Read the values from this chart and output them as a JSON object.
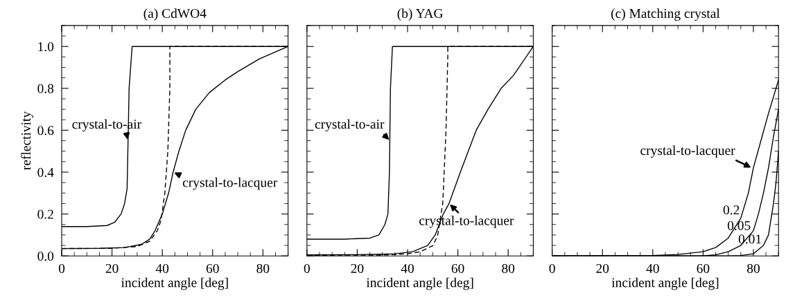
{
  "chart_data": [
    {
      "type": "line",
      "title": "(a) CdWO4",
      "xlabel": "incident angle [deg]",
      "ylabel": "reflectivity",
      "xlim": [
        0,
        90
      ],
      "ylim": [
        0,
        1.1
      ],
      "xticks": [
        0,
        20,
        40,
        60,
        80
      ],
      "yticks": [
        {
          "value": 0,
          "label": "0.0"
        },
        {
          "value": 0.2,
          "label": "0.2"
        },
        {
          "value": 0.4,
          "label": "0.4"
        },
        {
          "value": 0.6,
          "label": "0.6"
        },
        {
          "value": 0.8,
          "label": "0.8"
        },
        {
          "value": 1.0,
          "label": "1.0"
        }
      ],
      "series": [
        {
          "color": "#000000",
          "x": [
            0,
            10,
            18,
            21,
            23.6,
            25,
            26,
            26.3,
            26.8,
            28,
            40,
            60,
            90
          ],
          "values": [
            0.14,
            0.14,
            0.145,
            0.16,
            0.2,
            0.25,
            0.32,
            0.5,
            0.8,
            1.0,
            1.0,
            1.0,
            1.0
          ]
        },
        {
          "color": "#000000",
          "line_style": "dashed",
          "x": [
            0,
            20,
            30,
            35,
            38,
            39.5,
            41,
            42.2,
            43,
            43,
            60,
            90
          ],
          "values": [
            0.035,
            0.036,
            0.045,
            0.07,
            0.12,
            0.17,
            0.3,
            0.5,
            0.8,
            1.0,
            1.0,
            1.0
          ]
        },
        {
          "color": "#000000",
          "x": [
            0,
            15,
            25,
            31.7,
            35,
            37.1,
            40,
            42.5,
            44.3,
            46.6,
            49.3,
            53.3,
            58.7,
            65,
            70,
            78.5,
            90
          ],
          "values": [
            0.035,
            0.036,
            0.04,
            0.055,
            0.08,
            0.12,
            0.2,
            0.3,
            0.4,
            0.5,
            0.6,
            0.7,
            0.78,
            0.84,
            0.88,
            0.94,
            1.0
          ]
        }
      ],
      "annotations": [
        {
          "text": "crystal-to-air",
          "x": 26.3,
          "y": 0.55
        },
        {
          "text": "crystal-to-lacquer",
          "x": 44.3,
          "y": 0.4
        }
      ]
    },
    {
      "type": "line",
      "title": "(b) YAG",
      "xlabel": "incident angle [deg]",
      "xlim": [
        0,
        90
      ],
      "ylim": [
        0,
        1.1
      ],
      "xticks": [
        0,
        20,
        40,
        60,
        80
      ],
      "yticks": [
        0,
        0.2,
        0.4,
        0.6,
        0.8,
        1.0
      ],
      "tick_labels": "x",
      "series": [
        {
          "color": "#000000",
          "x": [
            0,
            15,
            25,
            28.6,
            31,
            32.2,
            32.8,
            33.2,
            34,
            50,
            90
          ],
          "values": [
            0.08,
            0.08,
            0.085,
            0.1,
            0.15,
            0.2,
            0.4,
            0.8,
            1.0,
            1.0,
            1.0
          ]
        },
        {
          "color": "#000000",
          "line_style": "dashed",
          "x": [
            0,
            30,
            40,
            45,
            50.2,
            52,
            54,
            55.3,
            56,
            56,
            70,
            90
          ],
          "values": [
            0.003,
            0.004,
            0.01,
            0.02,
            0.05,
            0.1,
            0.25,
            0.6,
            0.95,
            1.0,
            1.0,
            1.0
          ]
        },
        {
          "color": "#000000",
          "x": [
            0,
            20,
            30,
            35,
            42,
            48,
            51,
            54.2,
            56.5,
            61,
            67.3,
            72,
            77.2,
            82,
            90
          ],
          "values": [
            0.005,
            0.006,
            0.008,
            0.01,
            0.02,
            0.05,
            0.1,
            0.2,
            0.25,
            0.4,
            0.6,
            0.7,
            0.8,
            0.86,
            1.0
          ]
        }
      ],
      "annotations": [
        {
          "text": "crystal-to-air",
          "x": 33,
          "y": 0.55
        },
        {
          "text": "crystal-to-lacquer",
          "x": 56.5,
          "y": 0.25
        }
      ]
    },
    {
      "type": "line",
      "title": "(c) Matching crystal",
      "xlabel": "incident angle [deg]",
      "xlim": [
        0,
        90
      ],
      "ylim": [
        0,
        1.1
      ],
      "xticks": [
        0,
        20,
        40,
        60,
        80
      ],
      "yticks": [
        0,
        0.2,
        0.4,
        0.6,
        0.8,
        1.0
      ],
      "tick_labels": "x",
      "series": [
        {
          "color": "#000000",
          "x": [
            0,
            40,
            50,
            60,
            65,
            70,
            75,
            78,
            80,
            83,
            86,
            90
          ],
          "values": [
            0.0,
            0.002,
            0.007,
            0.02,
            0.04,
            0.085,
            0.18,
            0.3,
            0.42,
            0.55,
            0.68,
            0.84
          ]
        },
        {
          "color": "#000000",
          "x": [
            0,
            60,
            65,
            70,
            75,
            80,
            82,
            84,
            86,
            88,
            90
          ],
          "values": [
            0.0,
            0.0,
            0.005,
            0.02,
            0.05,
            0.12,
            0.2,
            0.3,
            0.42,
            0.57,
            0.7
          ]
        },
        {
          "color": "#000000",
          "x": [
            0,
            70,
            75,
            80,
            84,
            86,
            88,
            89,
            90
          ],
          "values": [
            0.0,
            0.0,
            0.002,
            0.01,
            0.05,
            0.1,
            0.25,
            0.35,
            0.5
          ]
        }
      ],
      "annotations": [
        {
          "text": "crystal-to-lacquer",
          "x": 79.5,
          "y": 0.42
        },
        {
          "text": "0.2",
          "x": 76.5,
          "y": 0.2
        },
        {
          "text": "0.05",
          "x": 80.5,
          "y": 0.13
        },
        {
          "text": "0.01",
          "x": 84.5,
          "y": 0.07
        }
      ]
    }
  ]
}
